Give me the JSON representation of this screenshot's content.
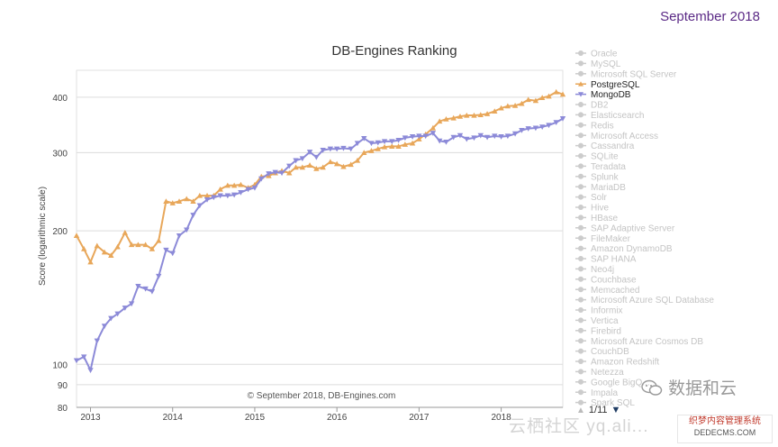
{
  "corner_date": "September 2018",
  "chart_data": {
    "type": "line",
    "title": "DB-Engines Ranking",
    "ylabel": "Score (logarithmic scale)",
    "xlabel": "",
    "yscale": "log",
    "ylim": [
      80,
      460
    ],
    "yticks": [
      80,
      90,
      100,
      200,
      300,
      400
    ],
    "xlim": [
      2012.83,
      2018.75
    ],
    "xticks": [
      2013,
      2014,
      2015,
      2016,
      2017,
      2018
    ],
    "credit": "© September 2018, DB-Engines.com",
    "legend_position": "right",
    "legend": [
      {
        "name": "Oracle",
        "active": false
      },
      {
        "name": "MySQL",
        "active": false
      },
      {
        "name": "Microsoft SQL Server",
        "active": false
      },
      {
        "name": "PostgreSQL",
        "active": true,
        "color": "#e8a75a",
        "marker": "triangle-up"
      },
      {
        "name": "MongoDB",
        "active": true,
        "color": "#8c8ad8",
        "marker": "triangle-down"
      },
      {
        "name": "DB2",
        "active": false
      },
      {
        "name": "Elasticsearch",
        "active": false
      },
      {
        "name": "Redis",
        "active": false
      },
      {
        "name": "Microsoft Access",
        "active": false
      },
      {
        "name": "Cassandra",
        "active": false
      },
      {
        "name": "SQLite",
        "active": false
      },
      {
        "name": "Teradata",
        "active": false
      },
      {
        "name": "Splunk",
        "active": false
      },
      {
        "name": "MariaDB",
        "active": false
      },
      {
        "name": "Solr",
        "active": false
      },
      {
        "name": "Hive",
        "active": false
      },
      {
        "name": "HBase",
        "active": false
      },
      {
        "name": "SAP Adaptive Server",
        "active": false
      },
      {
        "name": "FileMaker",
        "active": false
      },
      {
        "name": "Amazon DynamoDB",
        "active": false
      },
      {
        "name": "SAP HANA",
        "active": false
      },
      {
        "name": "Neo4j",
        "active": false
      },
      {
        "name": "Couchbase",
        "active": false
      },
      {
        "name": "Memcached",
        "active": false
      },
      {
        "name": "Microsoft Azure SQL Database",
        "active": false
      },
      {
        "name": "Informix",
        "active": false
      },
      {
        "name": "Vertica",
        "active": false
      },
      {
        "name": "Firebird",
        "active": false
      },
      {
        "name": "Microsoft Azure Cosmos DB",
        "active": false
      },
      {
        "name": "CouchDB",
        "active": false
      },
      {
        "name": "Amazon Redshift",
        "active": false
      },
      {
        "name": "Netezza",
        "active": false
      },
      {
        "name": "Google BigQ...",
        "active": false
      },
      {
        "name": "Impala",
        "active": false
      },
      {
        "name": "Spark SQL",
        "active": false
      }
    ],
    "series": [
      {
        "name": "PostgreSQL",
        "color": "#e8a75a",
        "marker": "triangle-up",
        "x": [
          2012.83,
          2012.92,
          2013.0,
          2013.08,
          2013.17,
          2013.25,
          2013.33,
          2013.42,
          2013.5,
          2013.58,
          2013.67,
          2013.75,
          2013.83,
          2013.92,
          2014.0,
          2014.08,
          2014.17,
          2014.25,
          2014.33,
          2014.42,
          2014.5,
          2014.58,
          2014.67,
          2014.75,
          2014.83,
          2014.92,
          2015.0,
          2015.08,
          2015.17,
          2015.25,
          2015.33,
          2015.42,
          2015.5,
          2015.58,
          2015.67,
          2015.75,
          2015.83,
          2015.92,
          2016.0,
          2016.08,
          2016.17,
          2016.25,
          2016.33,
          2016.42,
          2016.5,
          2016.58,
          2016.67,
          2016.75,
          2016.83,
          2016.92,
          2017.0,
          2017.08,
          2017.17,
          2017.25,
          2017.33,
          2017.42,
          2017.5,
          2017.58,
          2017.67,
          2017.75,
          2017.83,
          2017.92,
          2018.0,
          2018.08,
          2018.17,
          2018.25,
          2018.33,
          2018.42,
          2018.5,
          2018.58,
          2018.67,
          2018.75
        ],
        "values": [
          195,
          182,
          170,
          185,
          179,
          176,
          184,
          198,
          186,
          186,
          186,
          182,
          190,
          233,
          231,
          233,
          236,
          233,
          240,
          240,
          240,
          248,
          253,
          253,
          254,
          250,
          254,
          265,
          266,
          270,
          273,
          270,
          278,
          278,
          281,
          276,
          278,
          286,
          283,
          279,
          282,
          288,
          300,
          303,
          306,
          309,
          310,
          310,
          313,
          315,
          322,
          330,
          341,
          353,
          357,
          359,
          362,
          364,
          364,
          365,
          367,
          372,
          378,
          382,
          383,
          387,
          395,
          393,
          399,
          402,
          411,
          406
        ]
      },
      {
        "name": "MongoDB",
        "color": "#8c8ad8",
        "marker": "triangle-down",
        "x": [
          2012.83,
          2012.92,
          2013.0,
          2013.08,
          2013.17,
          2013.25,
          2013.33,
          2013.42,
          2013.5,
          2013.58,
          2013.67,
          2013.75,
          2013.83,
          2013.92,
          2014.0,
          2014.08,
          2014.17,
          2014.25,
          2014.33,
          2014.42,
          2014.5,
          2014.58,
          2014.67,
          2014.75,
          2014.83,
          2014.92,
          2015.0,
          2015.08,
          2015.17,
          2015.25,
          2015.33,
          2015.42,
          2015.5,
          2015.58,
          2015.67,
          2015.75,
          2015.83,
          2015.92,
          2016.0,
          2016.08,
          2016.17,
          2016.25,
          2016.33,
          2016.42,
          2016.5,
          2016.58,
          2016.67,
          2016.75,
          2016.83,
          2016.92,
          2017.0,
          2017.08,
          2017.17,
          2017.25,
          2017.33,
          2017.42,
          2017.5,
          2017.58,
          2017.67,
          2017.75,
          2017.83,
          2017.92,
          2018.0,
          2018.08,
          2018.17,
          2018.25,
          2018.33,
          2018.42,
          2018.5,
          2018.58,
          2018.67,
          2018.75
        ],
        "values": [
          102,
          104,
          97,
          113,
          122,
          127,
          130,
          134,
          137,
          150,
          148,
          146,
          158,
          181,
          178,
          195,
          201,
          217,
          228,
          235,
          238,
          240,
          240,
          241,
          244,
          248,
          250,
          262,
          269,
          271,
          270,
          280,
          288,
          291,
          301,
          293,
          304,
          306,
          306,
          307,
          306,
          315,
          323,
          315,
          316,
          318,
          318,
          320,
          324,
          326,
          327,
          327,
          332,
          319,
          317,
          325,
          328,
          322,
          324,
          328,
          325,
          327,
          326,
          327,
          331,
          337,
          340,
          341,
          343,
          346,
          351,
          358
        ]
      }
    ]
  },
  "pager": {
    "up_icon": "▲",
    "label": "1/11",
    "down_icon": "▼"
  },
  "watermark": {
    "wechat_text": "数据和云",
    "site_text": "云栖社区 yq.ali...",
    "badge_line1": "织梦内容管理系统",
    "badge_line2": "DEDECMS.COM"
  }
}
